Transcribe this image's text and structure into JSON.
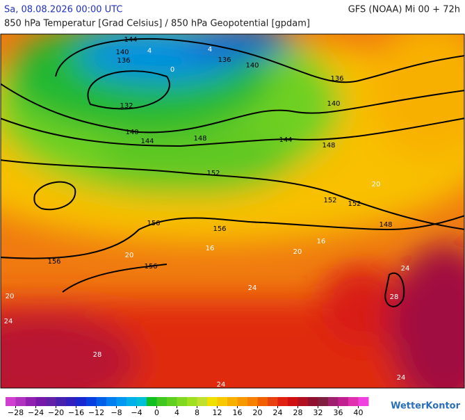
{
  "header": {
    "date": "Sa, 08.08.2026 00:00 UTC",
    "model": "GFS (NOAA) Mi 00 + 72h",
    "subtitle": "850 hPa Temperatur [Grad Celsius] / 850 hPa Geopotential [gpdam]"
  },
  "map": {
    "contour_labels": [
      "144",
      "140",
      "136",
      "136",
      "140",
      "136",
      "132",
      "140",
      "140",
      "144",
      "148",
      "144",
      "148",
      "152",
      "152",
      "152",
      "148",
      "156",
      "156",
      "156",
      "156"
    ],
    "isotherm_labels": [
      "4",
      "0",
      "4",
      "20",
      "20",
      "20",
      "24",
      "28",
      "24",
      "28",
      "24",
      "24",
      "16",
      "20",
      "16",
      "24"
    ]
  },
  "legend": {
    "range": [
      -30,
      42
    ],
    "colors": [
      "#d040d0",
      "#b030c0",
      "#9020b0",
      "#7818a8",
      "#6020a8",
      "#4820b0",
      "#3020c0",
      "#1828d0",
      "#0840e0",
      "#0060e8",
      "#0080f0",
      "#0098f0",
      "#00b0e8",
      "#00c0d8",
      "#10c020",
      "#40c820",
      "#60d020",
      "#80d820",
      "#a0e020",
      "#c0e030",
      "#f0e000",
      "#f8c800",
      "#f8b000",
      "#f89800",
      "#f88000",
      "#f06000",
      "#e84010",
      "#e02010",
      "#d01010",
      "#b01020",
      "#901030",
      "#802040",
      "#a02070",
      "#c02090",
      "#e030b0",
      "#f040e0"
    ],
    "ticks": [
      {
        "value": -28,
        "label": "−28"
      },
      {
        "value": -24,
        "label": "−24"
      },
      {
        "value": -20,
        "label": "−20"
      },
      {
        "value": -16,
        "label": "−16"
      },
      {
        "value": -12,
        "label": "−12"
      },
      {
        "value": -8,
        "label": "−8"
      },
      {
        "value": -4,
        "label": "−4"
      },
      0,
      4,
      8,
      12,
      16,
      20,
      24,
      28,
      32,
      36,
      40
    ],
    "brand": "WetterKontor"
  }
}
